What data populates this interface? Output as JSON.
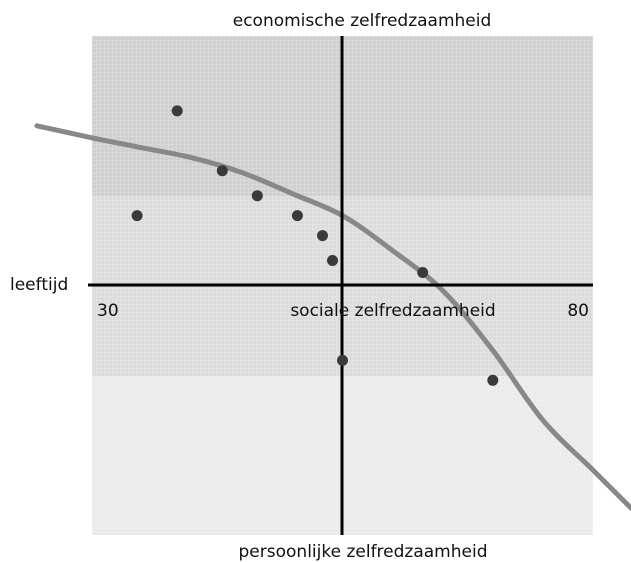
{
  "chart_data": {
    "type": "scatter",
    "title": "",
    "labels": {
      "top": "economische zelfredzaamheid",
      "bottom": "persoonlijke zelfredzaamheid",
      "left": "leeftijd",
      "center": "sociale zelfredzaamheid"
    },
    "x_tick_labels": [
      "30",
      "80"
    ],
    "xlim": [
      30,
      80
    ],
    "ylim": [
      -25,
      25
    ],
    "grid": false,
    "points": [
      {
        "x": 34.5,
        "y": 7
      },
      {
        "x": 38.5,
        "y": 17.5
      },
      {
        "x": 43,
        "y": 11.5
      },
      {
        "x": 46.5,
        "y": 9
      },
      {
        "x": 50.5,
        "y": 7
      },
      {
        "x": 53,
        "y": 5
      },
      {
        "x": 54,
        "y": 2.5
      },
      {
        "x": 55,
        "y": -7.5
      },
      {
        "x": 63,
        "y": 1.3
      },
      {
        "x": 70,
        "y": -9.5
      }
    ],
    "trend_line": [
      {
        "x": 24.5,
        "y": 16
      },
      {
        "x": 30,
        "y": 14.8
      },
      {
        "x": 35,
        "y": 13.8
      },
      {
        "x": 40,
        "y": 12.8
      },
      {
        "x": 45,
        "y": 11.3
      },
      {
        "x": 50,
        "y": 9.2
      },
      {
        "x": 55,
        "y": 7
      },
      {
        "x": 60,
        "y": 3.5
      },
      {
        "x": 65,
        "y": -0.5
      },
      {
        "x": 70,
        "y": -6.5
      },
      {
        "x": 75,
        "y": -13.5
      },
      {
        "x": 80,
        "y": -18.5
      },
      {
        "x": 84,
        "y": -22.5
      }
    ],
    "colors": {
      "points": "#3a3a3a",
      "trend_line": "#888888",
      "axes": "#000000",
      "band_top": "#cfcfcf",
      "band_middle": "#dcdcdc",
      "band_bottom": "#ebebeb"
    }
  }
}
